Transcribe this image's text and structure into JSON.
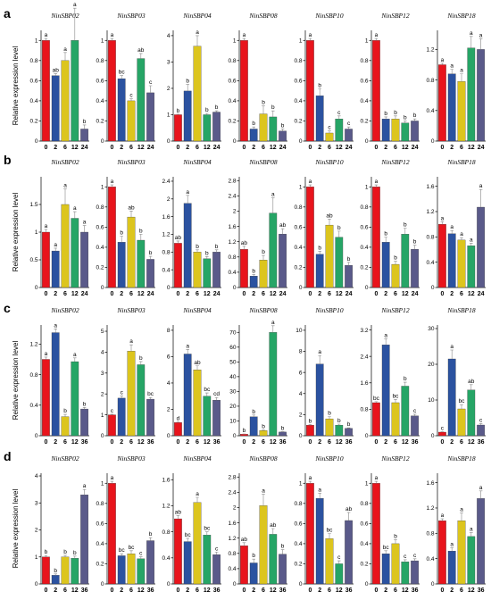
{
  "colors": [
    "#e8141c",
    "#2b52a0",
    "#dcc51e",
    "#26a566",
    "#5a5a8a"
  ],
  "chart_data": [
    {
      "type": "bar",
      "panel": "a",
      "ylabel": "Relative expression level",
      "categories": [
        "0",
        "2",
        "6",
        "12",
        "24"
      ],
      "charts": [
        {
          "title": "NinSBP02",
          "ylim": [
            0,
            1.1
          ],
          "yticks": [
            0,
            0.2,
            0.4,
            0.6,
            0.8,
            1.0
          ],
          "values": [
            1.0,
            0.65,
            0.8,
            1.0,
            0.12
          ],
          "errors": [
            0.02,
            0.02,
            0.08,
            0.32,
            0.04
          ],
          "letters": [
            "a",
            "ab",
            "a",
            "a",
            "b"
          ]
        },
        {
          "title": "NinSBP03",
          "ylim": [
            0,
            1.1
          ],
          "yticks": [
            0,
            0.2,
            0.4,
            0.6,
            0.8,
            1.0
          ],
          "values": [
            1.0,
            0.62,
            0.4,
            0.82,
            0.48
          ],
          "errors": [
            0.02,
            0.03,
            0.02,
            0.05,
            0.07
          ],
          "letters": [
            "a",
            "bc",
            "c",
            "ab",
            "c"
          ]
        },
        {
          "title": "NinSBP04",
          "ylim": [
            0,
            4.2
          ],
          "yticks": [
            0,
            1,
            2,
            3,
            4
          ],
          "values": [
            1.0,
            1.9,
            3.6,
            1.0,
            1.1
          ],
          "errors": [
            0.02,
            0.25,
            0.4,
            0.05,
            0.05
          ],
          "letters": [
            "b",
            "b",
            "a",
            "b",
            "b"
          ]
        },
        {
          "title": "NinSBP08",
          "ylim": [
            0,
            1.1
          ],
          "yticks": [
            0,
            0.2,
            0.4,
            0.6,
            0.8,
            1.0
          ],
          "values": [
            1.0,
            0.12,
            0.27,
            0.24,
            0.1
          ],
          "errors": [
            0.02,
            0.02,
            0.08,
            0.06,
            0.02
          ],
          "letters": [
            "a",
            "b",
            "b",
            "b",
            "b"
          ]
        },
        {
          "title": "NinSBP10",
          "ylim": [
            0,
            1.1
          ],
          "yticks": [
            0,
            0.2,
            0.4,
            0.6,
            0.8,
            1.0
          ],
          "values": [
            1.0,
            0.45,
            0.08,
            0.22,
            0.12
          ],
          "errors": [
            0.02,
            0.07,
            0.02,
            0.03,
            0.02
          ],
          "letters": [
            "a",
            "b",
            "c",
            "c",
            "c"
          ]
        },
        {
          "title": "NinSBP12",
          "ylim": [
            0,
            1.1
          ],
          "yticks": [
            0,
            0.2,
            0.4,
            0.6,
            0.8,
            1.0
          ],
          "values": [
            1.0,
            0.22,
            0.22,
            0.18,
            0.2
          ],
          "errors": [
            0.02,
            0.02,
            0.03,
            0.02,
            0.02
          ],
          "letters": [
            "a",
            "b",
            "b",
            "b",
            "b"
          ]
        },
        {
          "title": "NinSBP18",
          "ylim": [
            0,
            1.45
          ],
          "yticks": [
            0,
            0.4,
            0.8,
            1.2
          ],
          "values": [
            1.0,
            0.88,
            0.78,
            1.22,
            1.2
          ],
          "errors": [
            0.02,
            0.06,
            0.1,
            0.15,
            0.14
          ],
          "letters": [
            "a",
            "a",
            "a",
            "a",
            "a"
          ]
        }
      ]
    },
    {
      "type": "bar",
      "panel": "b",
      "ylabel": "Relative expression level",
      "categories": [
        "0",
        "2",
        "6",
        "12",
        "24"
      ],
      "charts": [
        {
          "title": "NinSBP02",
          "ylim": [
            0,
            2.0
          ],
          "yticks": [
            0,
            0.5,
            1.0,
            1.5
          ],
          "values": [
            1.0,
            0.66,
            1.5,
            1.25,
            1.0
          ],
          "errors": [
            0.05,
            0.05,
            0.28,
            0.12,
            0.12
          ],
          "letters": [
            "a",
            "a",
            "a",
            "a",
            "a"
          ]
        },
        {
          "title": "NinSBP03",
          "ylim": [
            0,
            1.1
          ],
          "yticks": [
            0,
            0.2,
            0.4,
            0.6,
            0.8,
            1.0
          ],
          "values": [
            1.0,
            0.45,
            0.7,
            0.47,
            0.28
          ],
          "errors": [
            0.02,
            0.06,
            0.06,
            0.06,
            0.03
          ],
          "letters": [
            "a",
            "b",
            "ab",
            "b",
            "b"
          ]
        },
        {
          "title": "NinSBP04",
          "ylim": [
            0,
            2.5
          ],
          "yticks": [
            0,
            0.4,
            0.8,
            1.2,
            1.6,
            2.0,
            2.4
          ],
          "values": [
            1.0,
            1.9,
            0.8,
            0.65,
            0.8
          ],
          "errors": [
            0.05,
            0.18,
            0.05,
            0.05,
            0.05
          ],
          "letters": [
            "ab",
            "a",
            "b",
            "b",
            "b"
          ]
        },
        {
          "title": "NinSBP08",
          "ylim": [
            0,
            2.9
          ],
          "yticks": [
            0,
            0.4,
            0.8,
            1.2,
            1.6,
            2.0,
            2.4,
            2.8
          ],
          "values": [
            1.0,
            0.3,
            0.72,
            1.95,
            1.4
          ],
          "errors": [
            0.08,
            0.04,
            0.12,
            0.4,
            0.14
          ],
          "letters": [
            "ab",
            "b",
            "b",
            "a",
            "ab"
          ]
        },
        {
          "title": "NinSBP10",
          "ylim": [
            0,
            1.1
          ],
          "yticks": [
            0,
            0.2,
            0.4,
            0.6,
            0.8,
            1.0
          ],
          "values": [
            1.0,
            0.33,
            0.62,
            0.5,
            0.22
          ],
          "errors": [
            0.02,
            0.03,
            0.06,
            0.06,
            0.03
          ],
          "letters": [
            "a",
            "b",
            "ab",
            "b",
            "b"
          ]
        },
        {
          "title": "NinSBP12",
          "ylim": [
            0,
            1.1
          ],
          "yticks": [
            0,
            0.2,
            0.4,
            0.6,
            0.8,
            1.0
          ],
          "values": [
            1.0,
            0.45,
            0.23,
            0.53,
            0.38
          ],
          "errors": [
            0.02,
            0.05,
            0.03,
            0.06,
            0.04
          ],
          "letters": [
            "a",
            "b",
            "b",
            "b",
            "b"
          ]
        },
        {
          "title": "NinSBP18",
          "ylim": [
            0,
            1.75
          ],
          "yticks": [
            0,
            0.4,
            0.8,
            1.2,
            1.6
          ],
          "values": [
            1.0,
            0.85,
            0.75,
            0.66,
            1.27
          ],
          "errors": [
            0.04,
            0.05,
            0.04,
            0.04,
            0.28
          ],
          "letters": [
            "a",
            "a",
            "a",
            "a",
            "a"
          ]
        }
      ]
    },
    {
      "type": "bar",
      "panel": "c",
      "ylabel": "Relative expression level",
      "categories": [
        "0",
        "2",
        "6",
        "12",
        "36"
      ],
      "charts": [
        {
          "title": "NinSBP02",
          "ylim": [
            0,
            1.45
          ],
          "yticks": [
            0,
            0.4,
            0.8,
            1.2
          ],
          "values": [
            1.0,
            1.35,
            0.25,
            0.97,
            0.35
          ],
          "errors": [
            0.03,
            0.05,
            0.03,
            0.05,
            0.02
          ],
          "letters": [
            "a",
            "a",
            "b",
            "a",
            "b"
          ]
        },
        {
          "title": "NinSBP03",
          "ylim": [
            0,
            5.3
          ],
          "yticks": [
            0,
            1,
            2,
            3,
            4,
            5
          ],
          "values": [
            1.0,
            1.8,
            4.05,
            3.4,
            1.75
          ],
          "errors": [
            0.03,
            0.1,
            0.3,
            0.15,
            0.08
          ],
          "letters": [
            "c",
            "c",
            "a",
            "b",
            "bc"
          ]
        },
        {
          "title": "NinSBP04",
          "ylim": [
            0,
            8.4
          ],
          "yticks": [
            0,
            2,
            4,
            6,
            8
          ],
          "values": [
            1.0,
            6.2,
            5.0,
            3.0,
            2.7
          ],
          "errors": [
            0.05,
            0.35,
            0.3,
            0.25,
            0.2
          ],
          "letters": [
            "d",
            "a",
            "ab",
            "bc",
            "cd"
          ]
        },
        {
          "title": "NinSBP08",
          "ylim": [
            0,
            75
          ],
          "yticks": [
            0,
            10,
            20,
            30,
            40,
            50,
            60,
            70
          ],
          "values": [
            1.0,
            12.8,
            3.5,
            70.0,
            2.5
          ],
          "errors": [
            0.2,
            1.2,
            0.5,
            4.5,
            0.3
          ],
          "letters": [
            "b",
            "b",
            "b",
            "a",
            "b"
          ]
        },
        {
          "title": "NinSBP10",
          "ylim": [
            0,
            10.5
          ],
          "yticks": [
            0,
            2,
            4,
            6,
            8,
            10
          ],
          "values": [
            1.0,
            6.8,
            1.6,
            1.0,
            0.7
          ],
          "errors": [
            0.05,
            0.8,
            0.2,
            0.1,
            0.05
          ],
          "letters": [
            "b",
            "a",
            "b",
            "b",
            "b"
          ]
        },
        {
          "title": "NinSBP12",
          "ylim": [
            0,
            3.35
          ],
          "yticks": [
            0,
            0.8,
            1.6,
            2.4,
            3.2
          ],
          "values": [
            1.0,
            2.75,
            1.0,
            1.5,
            0.6
          ],
          "errors": [
            0.03,
            0.18,
            0.1,
            0.12,
            0.05
          ],
          "letters": [
            "bc",
            "a",
            "bc",
            "b",
            "c"
          ]
        },
        {
          "title": "NinSBP18",
          "ylim": [
            0,
            31
          ],
          "yticks": [
            0,
            10,
            20,
            30
          ],
          "values": [
            1.0,
            21.5,
            7.5,
            12.8,
            3.0
          ],
          "errors": [
            0.1,
            2.5,
            1.2,
            1.5,
            0.4
          ],
          "letters": [
            "c",
            "a",
            "bc",
            "ab",
            "c"
          ]
        }
      ]
    },
    {
      "type": "bar",
      "panel": "d",
      "ylabel": "Relative expression level",
      "categories": [
        "0",
        "2",
        "6",
        "12",
        "36"
      ],
      "charts": [
        {
          "title": "NinSBP02",
          "ylim": [
            0,
            4.1
          ],
          "yticks": [
            0,
            1,
            2,
            3,
            4
          ],
          "values": [
            1.0,
            0.32,
            1.0,
            0.95,
            3.3
          ],
          "errors": [
            0.05,
            0.05,
            0.06,
            0.08,
            0.2
          ],
          "letters": [
            "b",
            "b",
            "b",
            "b",
            "a"
          ]
        },
        {
          "title": "NinSBP03",
          "ylim": [
            0,
            1.1
          ],
          "yticks": [
            0,
            0.2,
            0.4,
            0.6,
            0.8,
            1.0
          ],
          "values": [
            1.0,
            0.28,
            0.3,
            0.25,
            0.43
          ],
          "errors": [
            0.02,
            0.02,
            0.03,
            0.02,
            0.03
          ],
          "letters": [
            "a",
            "bc",
            "bc",
            "c",
            "b"
          ]
        },
        {
          "title": "NinSBP04",
          "ylim": [
            0,
            1.7
          ],
          "yticks": [
            0,
            0.4,
            0.8,
            1.2,
            1.6
          ],
          "values": [
            1.0,
            0.65,
            1.25,
            0.75,
            0.45
          ],
          "errors": [
            0.05,
            0.05,
            0.08,
            0.05,
            0.04
          ],
          "letters": [
            "ab",
            "bc",
            "a",
            "bc",
            "c"
          ]
        },
        {
          "title": "NinSBP08",
          "ylim": [
            0,
            2.9
          ],
          "yticks": [
            0,
            0.4,
            0.8,
            1.2,
            1.6,
            2.0,
            2.4,
            2.8
          ],
          "values": [
            1.0,
            0.55,
            2.05,
            1.3,
            0.78
          ],
          "errors": [
            0.08,
            0.1,
            0.3,
            0.15,
            0.12
          ],
          "letters": [
            "ab",
            "b",
            "a",
            "ab",
            "b"
          ]
        },
        {
          "title": "NinSBP10",
          "ylim": [
            0,
            1.1
          ],
          "yticks": [
            0,
            0.2,
            0.4,
            0.6,
            0.8,
            1.0
          ],
          "values": [
            1.0,
            0.85,
            0.45,
            0.2,
            0.63
          ],
          "errors": [
            0.02,
            0.05,
            0.05,
            0.03,
            0.08
          ],
          "letters": [
            "a",
            "a",
            "bc",
            "c",
            "ab"
          ]
        },
        {
          "title": "NinSBP12",
          "ylim": [
            0,
            1.1
          ],
          "yticks": [
            0,
            0.2,
            0.4,
            0.6,
            0.8,
            1.0
          ],
          "values": [
            1.0,
            0.3,
            0.4,
            0.22,
            0.23
          ],
          "errors": [
            0.02,
            0.03,
            0.04,
            0.02,
            0.02
          ],
          "letters": [
            "a",
            "bc",
            "b",
            "c",
            "c"
          ]
        },
        {
          "title": "NinSBP18",
          "ylim": [
            0,
            1.75
          ],
          "yticks": [
            0,
            0.4,
            0.8,
            1.2,
            1.6
          ],
          "values": [
            1.0,
            0.52,
            1.0,
            0.75,
            1.35
          ],
          "errors": [
            0.03,
            0.05,
            0.12,
            0.06,
            0.12
          ],
          "letters": [
            "a",
            "a",
            "a",
            "a",
            "a"
          ]
        }
      ]
    }
  ]
}
